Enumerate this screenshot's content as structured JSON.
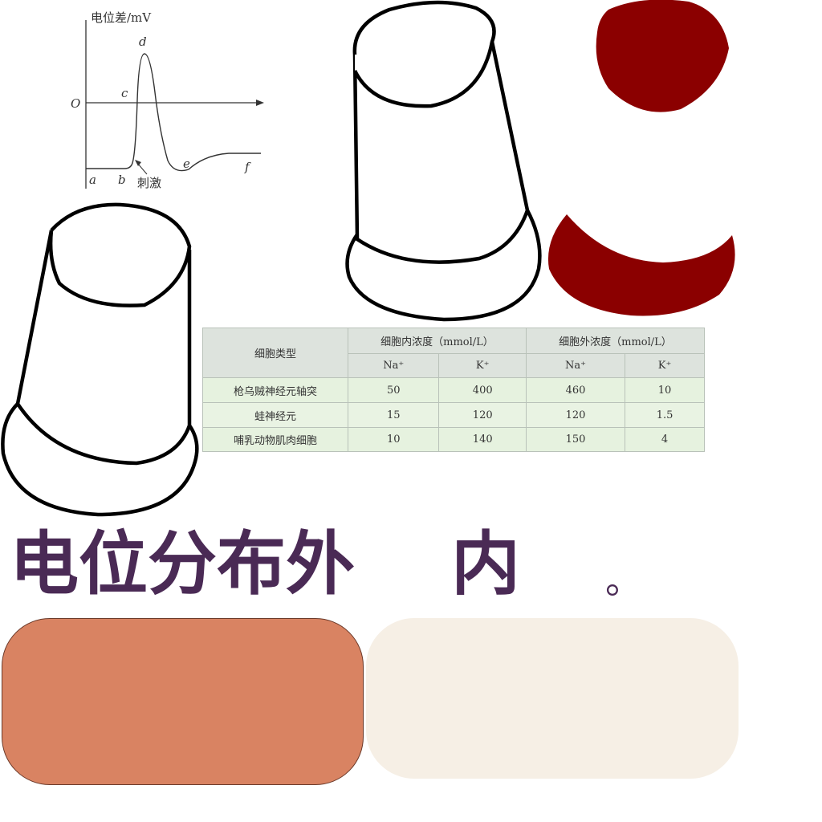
{
  "graph": {
    "ylabel": "电位差/mV",
    "zero": "O",
    "points": {
      "a": "a",
      "b": "b",
      "c": "c",
      "d": "d",
      "e": "e",
      "f": "f"
    },
    "stimulus": "刺激"
  },
  "table": {
    "col_cell_type": "细胞类型",
    "col_inside": "细胞内浓度（mmol/L）",
    "col_outside": "细胞外浓度（mmol/L）",
    "sub_na_in": "Na⁺",
    "sub_k_in": "K⁺",
    "sub_na_out": "Na⁺",
    "sub_k_out": "K⁺",
    "rows": [
      {
        "type": "枪乌贼神经元轴突",
        "na_in": "50",
        "k_in": "400",
        "na_out": "460",
        "k_out": "10"
      },
      {
        "type": "蛙神经元",
        "na_in": "15",
        "k_in": "120",
        "na_out": "120",
        "k_out": "1.5"
      },
      {
        "type": "哺乳动物肌肉细胞",
        "na_in": "10",
        "k_in": "140",
        "na_out": "150",
        "k_out": "4"
      }
    ]
  },
  "caption": {
    "part1": "电位分布外",
    "part2": "内",
    "period": "。"
  },
  "colors": {
    "title": "#4a2a55",
    "dark_red": "#8b0000",
    "orange_box": "#d98362",
    "cream_box": "#f6efe5"
  }
}
